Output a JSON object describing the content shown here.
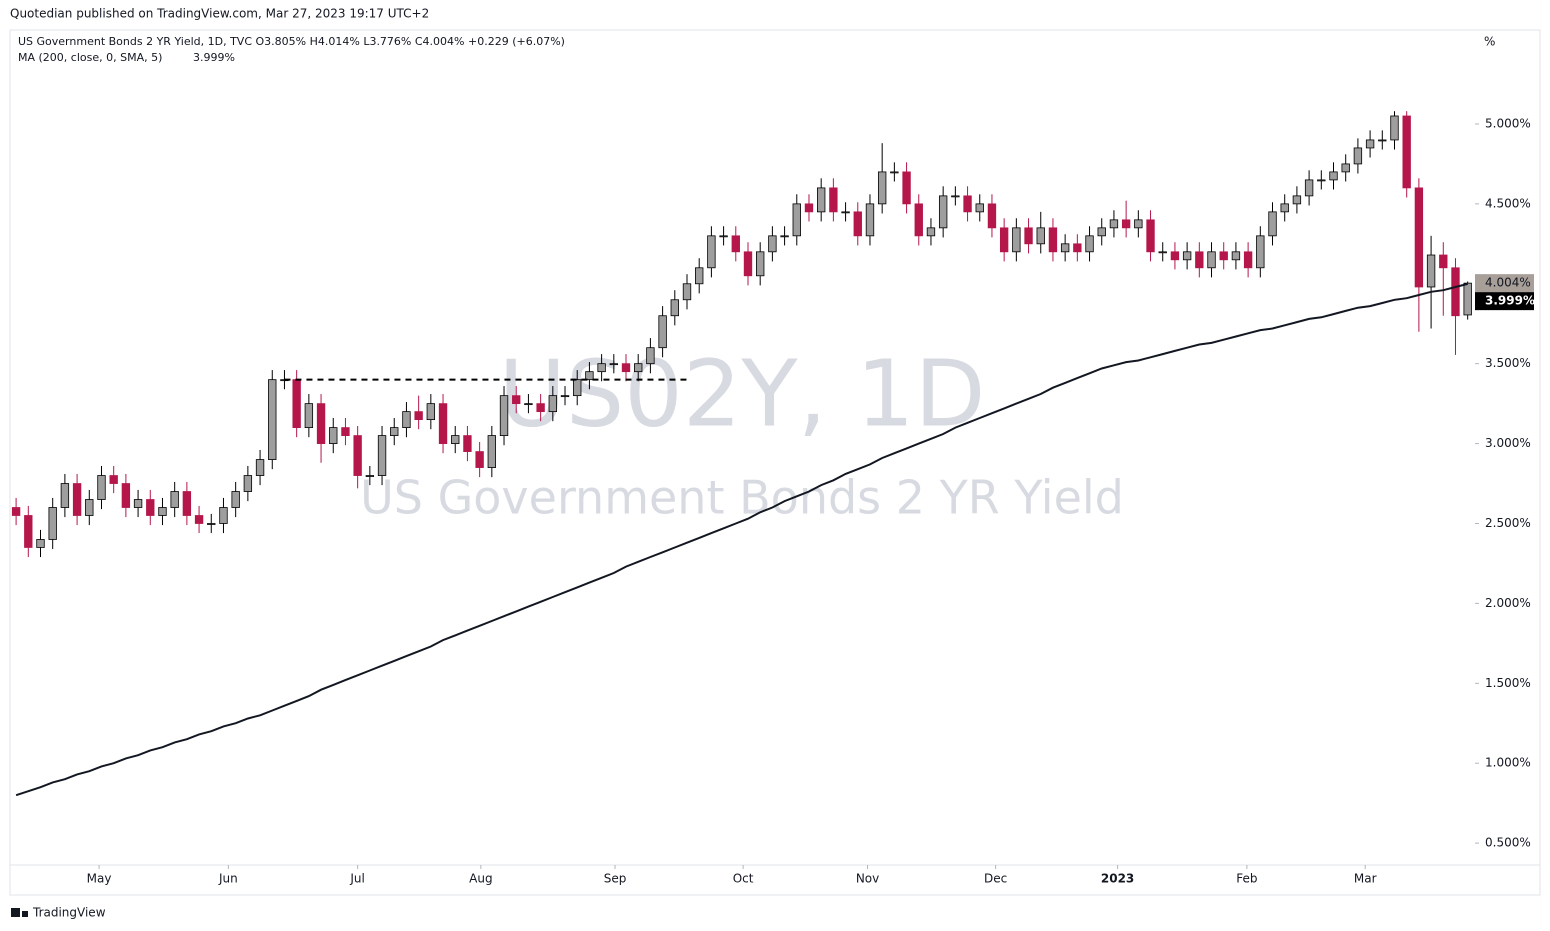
{
  "header": "Quotedian published on TradingView.com, Mar 27, 2023 19:17 UTC+2",
  "footer": "TradingView",
  "chart_data": {
    "type": "candlestick",
    "legend": "US Government Bonds 2 YR Yield, 1D, TVC  O3.805%  H4.014%  L3.776%  C4.004%  +0.229 (+6.07%)",
    "watermark": "US02Y, 1D",
    "watermark_subtitle": "US Government Bonds 2 YR Yield",
    "y_unit": "%",
    "up_color": "#9e9e9e",
    "down_color": "#b5174b",
    "border_color": "#000000",
    "xlim": [
      -0.5,
      119.6
    ],
    "xticks": [
      {
        "value": 6.8,
        "label": "May"
      },
      {
        "value": 17.4,
        "label": "Jun"
      },
      {
        "value": 28.0,
        "label": "Jul"
      },
      {
        "value": 38.1,
        "label": "Aug"
      },
      {
        "value": 49.1,
        "label": "Sep"
      },
      {
        "value": 59.6,
        "label": "Oct"
      },
      {
        "value": 69.8,
        "label": "Nov"
      },
      {
        "value": 80.3,
        "label": "Dec"
      },
      {
        "value": 90.3,
        "label": "2023"
      },
      {
        "value": 100.9,
        "label": "Feb"
      },
      {
        "value": 110.6,
        "label": "Mar"
      }
    ],
    "ylim": [
      0.363,
      5.588
    ],
    "yticks": [
      {
        "value": 0.5,
        "label": "0.500%"
      },
      {
        "value": 1,
        "label": "1.000%"
      },
      {
        "value": 1.5,
        "label": "1.500%"
      },
      {
        "value": 2,
        "label": "2.000%"
      },
      {
        "value": 2.5,
        "label": "2.500%"
      },
      {
        "value": 3,
        "label": "3.000%"
      },
      {
        "value": 3.5,
        "label": "3.500%"
      },
      {
        "value": 4,
        "label": "4.000%"
      },
      {
        "value": 4.5,
        "label": "4.500%"
      },
      {
        "value": 5,
        "label": "5.000%"
      }
    ],
    "open": [
      2.6,
      2.55,
      2.35,
      2.4,
      2.6,
      2.75,
      2.55,
      2.65,
      2.8,
      2.75,
      2.6,
      2.65,
      2.55,
      2.6,
      2.7,
      2.55,
      2.5,
      2.5,
      2.6,
      2.7,
      2.8,
      2.9,
      3.4,
      3.4,
      3.1,
      3.25,
      3.0,
      3.1,
      3.05,
      2.8,
      2.8,
      3.05,
      3.1,
      3.2,
      3.15,
      3.25,
      3.0,
      3.05,
      2.95,
      2.85,
      3.05,
      3.3,
      3.25,
      3.25,
      3.2,
      3.3,
      3.3,
      3.4,
      3.45,
      3.5,
      3.5,
      3.45,
      3.5,
      3.6,
      3.8,
      3.9,
      4.0,
      4.1,
      4.3,
      4.3,
      4.2,
      4.05,
      4.2,
      4.3,
      4.3,
      4.5,
      4.45,
      4.6,
      4.45,
      4.45,
      4.3,
      4.5,
      4.7,
      4.7,
      4.5,
      4.3,
      4.35,
      4.55,
      4.55,
      4.45,
      4.5,
      4.35,
      4.2,
      4.35,
      4.25,
      4.35,
      4.2,
      4.25,
      4.2,
      4.3,
      4.35,
      4.4,
      4.35,
      4.4,
      4.2,
      4.2,
      4.15,
      4.2,
      4.1,
      4.2,
      4.15,
      4.2,
      4.1,
      4.3,
      4.45,
      4.5,
      4.55,
      4.65,
      4.65,
      4.7,
      4.75,
      4.85,
      4.9,
      4.9,
      5.05,
      4.6,
      3.98,
      4.18,
      4.1,
      3.805
    ],
    "high": [
      2.66,
      2.61,
      2.46,
      2.66,
      2.81,
      2.81,
      2.71,
      2.86,
      2.86,
      2.81,
      2.71,
      2.71,
      2.66,
      2.76,
      2.76,
      2.61,
      2.56,
      2.66,
      2.76,
      2.86,
      2.96,
      3.46,
      3.46,
      3.46,
      3.31,
      3.31,
      3.16,
      3.16,
      3.11,
      2.86,
      3.11,
      3.16,
      3.26,
      3.3,
      3.31,
      3.31,
      3.11,
      3.11,
      3.01,
      3.11,
      3.36,
      3.36,
      3.31,
      3.31,
      3.36,
      3.36,
      3.46,
      3.51,
      3.56,
      3.56,
      3.56,
      3.56,
      3.66,
      3.86,
      3.96,
      4.06,
      4.16,
      4.36,
      4.36,
      4.36,
      4.26,
      4.26,
      4.36,
      4.36,
      4.56,
      4.56,
      4.66,
      4.66,
      4.51,
      4.51,
      4.56,
      4.88,
      4.76,
      4.76,
      4.56,
      4.41,
      4.61,
      4.61,
      4.61,
      4.56,
      4.56,
      4.41,
      4.41,
      4.41,
      4.45,
      4.41,
      4.31,
      4.31,
      4.36,
      4.41,
      4.46,
      4.52,
      4.46,
      4.46,
      4.26,
      4.26,
      4.26,
      4.26,
      4.26,
      4.26,
      4.26,
      4.26,
      4.36,
      4.51,
      4.56,
      4.61,
      4.71,
      4.71,
      4.76,
      4.81,
      4.91,
      4.96,
      4.96,
      5.08,
      5.08,
      4.66,
      4.3,
      4.26,
      4.16,
      4.014
    ],
    "low": [
      2.49,
      2.29,
      2.29,
      2.34,
      2.54,
      2.49,
      2.49,
      2.59,
      2.69,
      2.54,
      2.54,
      2.49,
      2.49,
      2.54,
      2.49,
      2.44,
      2.44,
      2.44,
      2.54,
      2.64,
      2.74,
      2.84,
      3.34,
      3.04,
      3.04,
      2.88,
      2.94,
      2.99,
      2.72,
      2.74,
      2.74,
      2.99,
      3.04,
      3.09,
      3.09,
      2.94,
      2.94,
      2.89,
      2.79,
      2.79,
      2.99,
      3.19,
      3.19,
      3.14,
      3.14,
      3.24,
      3.24,
      3.34,
      3.39,
      3.44,
      3.39,
      3.39,
      3.44,
      3.54,
      3.74,
      3.84,
      3.94,
      4.04,
      4.24,
      4.14,
      3.99,
      3.99,
      4.14,
      4.24,
      4.24,
      4.39,
      4.39,
      4.39,
      4.39,
      4.24,
      4.24,
      4.44,
      4.64,
      4.44,
      4.24,
      4.24,
      4.29,
      4.49,
      4.39,
      4.39,
      4.29,
      4.14,
      4.14,
      4.19,
      4.19,
      4.14,
      4.14,
      4.14,
      4.14,
      4.24,
      4.29,
      4.29,
      4.29,
      4.14,
      4.14,
      4.09,
      4.09,
      4.04,
      4.04,
      4.09,
      4.09,
      4.04,
      4.04,
      4.24,
      4.39,
      4.44,
      4.49,
      4.59,
      4.59,
      4.64,
      4.69,
      4.79,
      4.84,
      4.84,
      4.54,
      3.7,
      3.72,
      3.8,
      3.555,
      3.776
    ],
    "close": [
      2.55,
      2.35,
      2.4,
      2.6,
      2.75,
      2.55,
      2.65,
      2.8,
      2.75,
      2.6,
      2.65,
      2.55,
      2.6,
      2.7,
      2.55,
      2.5,
      2.5,
      2.6,
      2.7,
      2.8,
      2.9,
      3.4,
      3.4,
      3.1,
      3.25,
      3.0,
      3.1,
      3.05,
      2.8,
      2.8,
      3.05,
      3.1,
      3.2,
      3.15,
      3.25,
      3.0,
      3.05,
      2.95,
      2.85,
      3.05,
      3.3,
      3.25,
      3.25,
      3.2,
      3.3,
      3.3,
      3.4,
      3.45,
      3.5,
      3.5,
      3.45,
      3.5,
      3.6,
      3.8,
      3.9,
      4.0,
      4.1,
      4.3,
      4.3,
      4.2,
      4.05,
      4.2,
      4.3,
      4.3,
      4.5,
      4.45,
      4.6,
      4.45,
      4.45,
      4.3,
      4.5,
      4.7,
      4.7,
      4.5,
      4.3,
      4.35,
      4.55,
      4.55,
      4.45,
      4.5,
      4.35,
      4.2,
      4.35,
      4.25,
      4.35,
      4.2,
      4.25,
      4.2,
      4.3,
      4.35,
      4.4,
      4.35,
      4.4,
      4.2,
      4.2,
      4.15,
      4.2,
      4.1,
      4.2,
      4.15,
      4.2,
      4.1,
      4.3,
      4.45,
      4.5,
      4.55,
      4.65,
      4.65,
      4.7,
      4.75,
      4.85,
      4.9,
      4.9,
      5.05,
      4.6,
      3.98,
      4.18,
      4.1,
      3.8,
      4.004
    ],
    "ma": {
      "name": "MA (200, close, 0, SMA, 5)",
      "color": "#131722",
      "values": [
        0.8,
        0.825,
        0.85,
        0.88,
        0.9,
        0.93,
        0.95,
        0.98,
        1.0,
        1.03,
        1.05,
        1.08,
        1.1,
        1.13,
        1.15,
        1.18,
        1.2,
        1.23,
        1.25,
        1.28,
        1.3,
        1.33,
        1.36,
        1.39,
        1.42,
        1.46,
        1.49,
        1.52,
        1.55,
        1.58,
        1.61,
        1.64,
        1.67,
        1.7,
        1.73,
        1.77,
        1.8,
        1.83,
        1.86,
        1.89,
        1.92,
        1.95,
        1.98,
        2.01,
        2.04,
        2.07,
        2.1,
        2.13,
        2.16,
        2.19,
        2.23,
        2.26,
        2.29,
        2.32,
        2.35,
        2.38,
        2.41,
        2.44,
        2.47,
        2.5,
        2.53,
        2.57,
        2.6,
        2.64,
        2.67,
        2.7,
        2.74,
        2.77,
        2.81,
        2.84,
        2.87,
        2.91,
        2.94,
        2.97,
        3.0,
        3.03,
        3.06,
        3.1,
        3.13,
        3.16,
        3.19,
        3.22,
        3.25,
        3.28,
        3.31,
        3.35,
        3.38,
        3.41,
        3.44,
        3.47,
        3.49,
        3.51,
        3.52,
        3.54,
        3.56,
        3.58,
        3.6,
        3.62,
        3.63,
        3.65,
        3.67,
        3.69,
        3.71,
        3.72,
        3.74,
        3.76,
        3.78,
        3.79,
        3.81,
        3.83,
        3.85,
        3.86,
        3.88,
        3.9,
        3.91,
        3.93,
        3.95,
        3.96,
        3.98,
        3.999
      ]
    },
    "price_label": {
      "value": 4.004,
      "label": "4.004%"
    },
    "ma_label": {
      "value": 3.999,
      "label": "3.999%"
    },
    "hline": {
      "y": 3.4,
      "x": [
        22,
        55
      ]
    }
  }
}
